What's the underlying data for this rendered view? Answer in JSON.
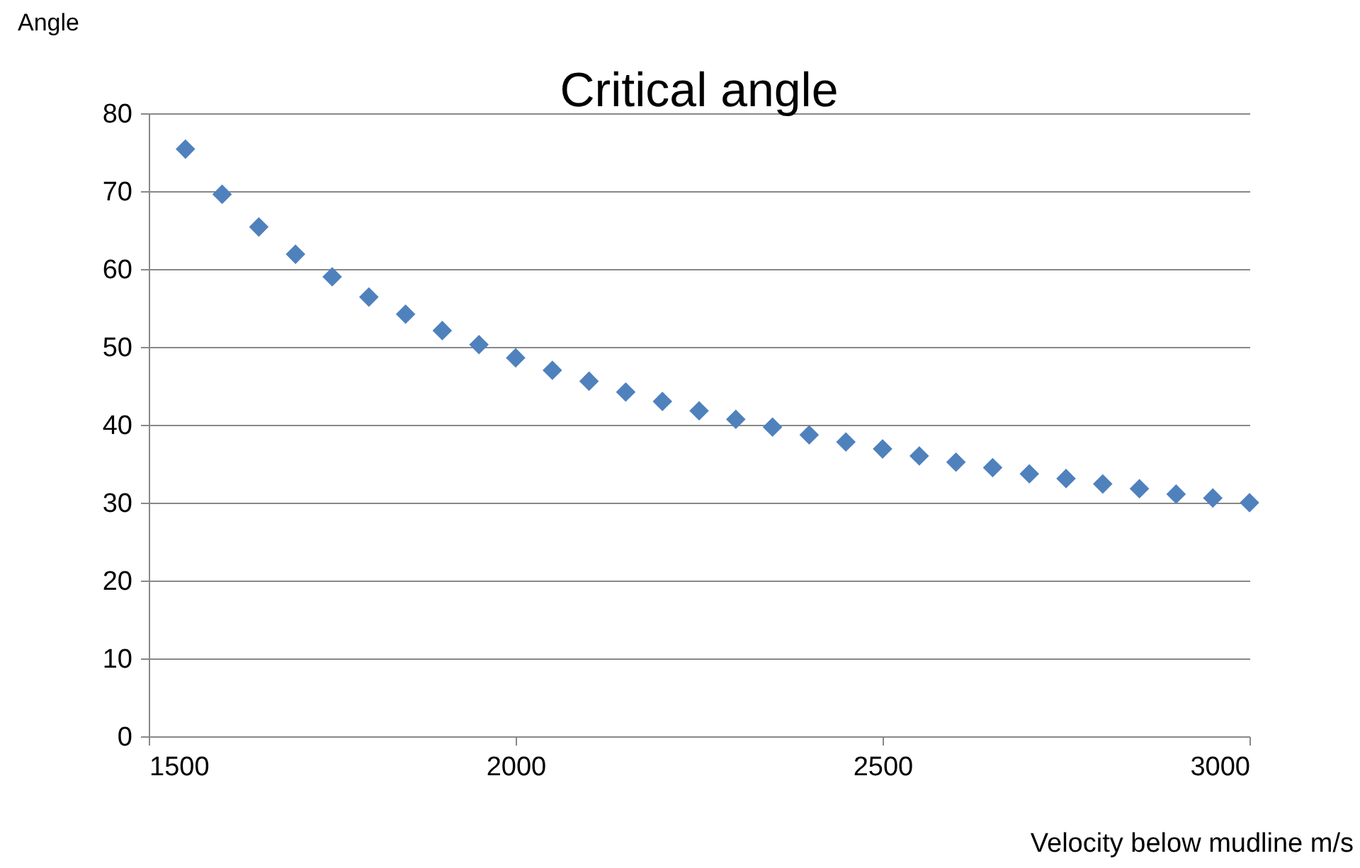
{
  "chart_data": {
    "type": "scatter",
    "title": "Critical angle",
    "xlabel": "Velocity below mudline m/s",
    "ylabel": "Angle",
    "x": [
      1550,
      1600,
      1650,
      1700,
      1750,
      1800,
      1850,
      1900,
      1950,
      2000,
      2050,
      2100,
      2150,
      2200,
      2250,
      2300,
      2350,
      2400,
      2450,
      2500,
      2550,
      2600,
      2650,
      2700,
      2750,
      2800,
      2850,
      2900,
      2950,
      3000
    ],
    "values": [
      75.4,
      69.6,
      65.4,
      61.9,
      59.0,
      56.4,
      54.2,
      52.1,
      50.3,
      48.6,
      47.0,
      45.6,
      44.2,
      43.0,
      41.8,
      40.7,
      39.7,
      38.7,
      37.8,
      36.9,
      36.0,
      35.2,
      34.5,
      33.7,
      33.1,
      32.4,
      31.8,
      31.1,
      30.6,
      30.0
    ],
    "color": "#4f81bd",
    "marker": "diamond",
    "xlim": [
      1500,
      3000
    ],
    "xticks": [
      1500,
      2000,
      2500,
      3000
    ],
    "ylim": [
      0,
      80
    ],
    "yticks": [
      0,
      10,
      20,
      30,
      40,
      50,
      60,
      70,
      80
    ],
    "grid": "y"
  }
}
